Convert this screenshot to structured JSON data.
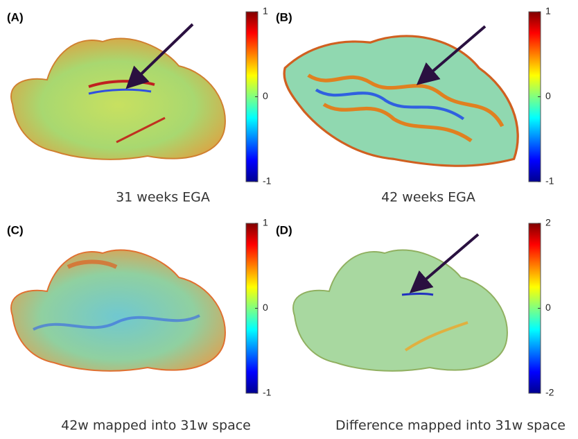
{
  "panels": [
    {
      "label": "(A)",
      "caption": "31 weeks EGA",
      "colorbar": {
        "lim": [
          -1,
          1
        ],
        "ticks": [
          -1,
          0,
          1
        ]
      }
    },
    {
      "label": "(B)",
      "caption": "42 weeks EGA",
      "colorbar": {
        "lim": [
          -1,
          1
        ],
        "ticks": [
          -1,
          0,
          1
        ]
      }
    },
    {
      "label": "(C)",
      "caption": "42w mapped into 31w space",
      "colorbar": {
        "lim": [
          -1,
          1
        ],
        "ticks": [
          -1,
          0,
          1
        ]
      }
    },
    {
      "label": "(D)",
      "caption": "Difference mapped into 31w space",
      "colorbar": {
        "lim": [
          -2,
          2
        ],
        "ticks": [
          -2,
          0,
          2
        ]
      }
    }
  ]
}
